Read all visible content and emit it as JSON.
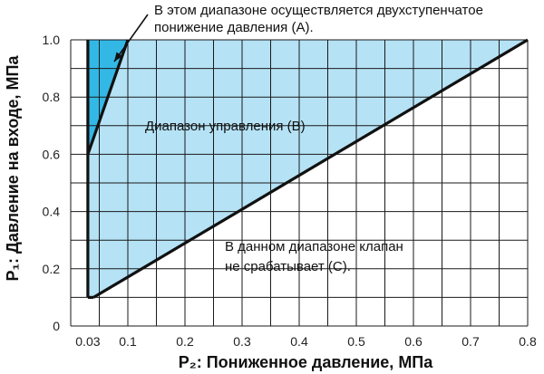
{
  "chart_data": {
    "type": "area",
    "xlabel": "P₂: Пониженное давление, МПа",
    "ylabel": "P₁: Давление на входе, МПа",
    "xlim": [
      0,
      0.8
    ],
    "ylim": [
      0,
      1.0
    ],
    "grid": true,
    "x_ticks": [
      {
        "value": 0.03,
        "label": "0.03"
      },
      {
        "value": 0.1,
        "label": "0.1"
      },
      {
        "value": 0.2,
        "label": "0.2"
      },
      {
        "value": 0.3,
        "label": "0.3"
      },
      {
        "value": 0.4,
        "label": "0.4"
      },
      {
        "value": 0.5,
        "label": "0.5"
      },
      {
        "value": 0.6,
        "label": "0.6"
      },
      {
        "value": 0.7,
        "label": "0.7"
      },
      {
        "value": 0.8,
        "label": "0.8"
      }
    ],
    "y_ticks": [
      {
        "value": 0,
        "label": "0"
      },
      {
        "value": 0.2,
        "label": "0.2"
      },
      {
        "value": 0.4,
        "label": "0.4"
      },
      {
        "value": 0.6,
        "label": "0.6"
      },
      {
        "value": 0.8,
        "label": "0.8"
      },
      {
        "value": 1.0,
        "label": "1.0"
      }
    ],
    "regions": [
      {
        "label": "A",
        "text": "В этом диапазоне осуществляется двухступенчатое понижение давления (A).",
        "color": "#33b8e6",
        "polygon": [
          [
            0.03,
            0.6
          ],
          [
            0.03,
            1.0
          ],
          [
            0.1,
            1.0
          ]
        ]
      },
      {
        "label": "B",
        "text": "Диапазон управления (B)",
        "color": "#b5e2f5",
        "polygon": [
          [
            0.03,
            0.1
          ],
          [
            0.03,
            0.6
          ],
          [
            0.1,
            1.0
          ],
          [
            0.8,
            1.0
          ],
          [
            0.04,
            0.1
          ]
        ]
      },
      {
        "label": "C",
        "text": "В данном диапазоне клапан не срабатывает (С).",
        "color": "#ffffff",
        "polygon": [
          [
            0.04,
            0.1
          ],
          [
            0.8,
            1.0
          ],
          [
            0.8,
            0.0
          ],
          [
            0.04,
            0.0
          ]
        ]
      }
    ],
    "boundary_lines": [
      {
        "name": "min-inlet-vertical",
        "points": [
          [
            0.03,
            0.1
          ],
          [
            0.03,
            1.0
          ]
        ]
      },
      {
        "name": "two-stage-limit",
        "points": [
          [
            0.03,
            0.6
          ],
          [
            0.1,
            1.0
          ]
        ]
      },
      {
        "name": "bottom-limit",
        "points": [
          [
            0.03,
            0.1
          ],
          [
            0.04,
            0.1
          ]
        ]
      },
      {
        "name": "operating-limit",
        "points": [
          [
            0.04,
            0.1
          ],
          [
            0.8,
            1.0
          ]
        ]
      }
    ],
    "annotations": [
      {
        "lines": [
          "В этом диапазоне осуществляется двухступенчатое",
          "понижение давления (A)."
        ]
      },
      {
        "lines": [
          "Диапазон управления (B)"
        ]
      },
      {
        "lines": [
          "В данном диапазоне клапан",
          "не срабатывает (С)."
        ]
      }
    ]
  }
}
